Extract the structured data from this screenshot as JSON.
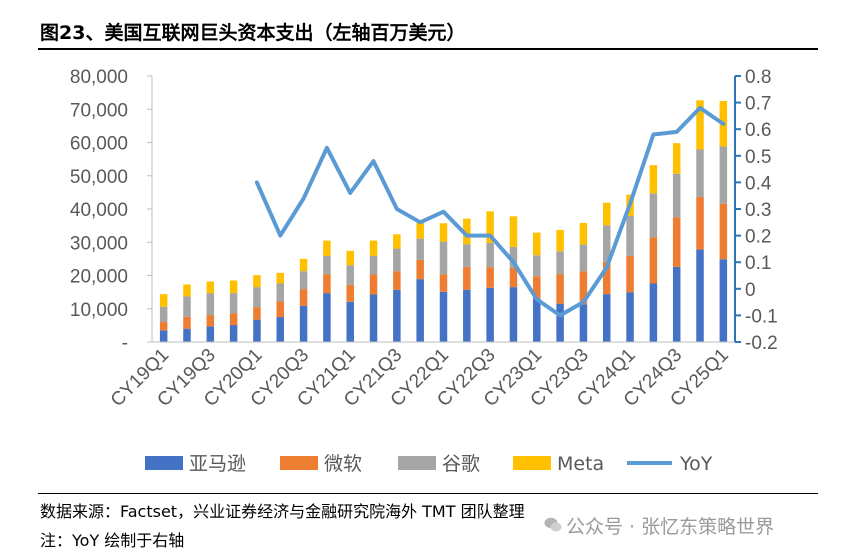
{
  "header": {
    "title": "图23、美国互联网巨头资本支出（左轴百万美元）"
  },
  "footer": {
    "source": "数据来源：Factset，兴业证券经济与金融研究院海外 TMT 团队整理",
    "note": "注：YoY 绘制于右轴",
    "watermark": "公众号 · 张忆东策略世界"
  },
  "chart_data": {
    "type": "bar",
    "stacked": true,
    "categories": [
      "CY19Q1",
      "CY19Q2",
      "CY19Q3",
      "CY19Q4",
      "CY20Q1",
      "CY20Q2",
      "CY20Q3",
      "CY20Q4",
      "CY21Q1",
      "CY21Q2",
      "CY21Q3",
      "CY21Q4",
      "CY22Q1",
      "CY22Q2",
      "CY22Q3",
      "CY22Q4",
      "CY23Q1",
      "CY23Q2",
      "CY23Q3",
      "CY23Q4",
      "CY24Q1",
      "CY24Q2",
      "CY24Q3",
      "CY24Q4",
      "CY25Q1"
    ],
    "x_tick_labels": [
      "CY19Q1",
      "",
      "CY19Q3",
      "",
      "CY20Q1",
      "",
      "CY20Q3",
      "",
      "CY21Q1",
      "",
      "CY21Q3",
      "",
      "CY22Q1",
      "",
      "CY22Q3",
      "",
      "CY23Q1",
      "",
      "CY23Q3",
      "",
      "CY24Q1",
      "",
      "CY24Q3",
      "",
      "CY25Q1"
    ],
    "series": [
      {
        "name": "亚马逊",
        "color": "#4472C4",
        "axis": "left",
        "values": [
          3500,
          4000,
          4700,
          5100,
          6700,
          7500,
          10900,
          14700,
          12100,
          14300,
          15700,
          18900,
          15100,
          15700,
          16300,
          16500,
          13200,
          11500,
          11300,
          14400,
          14900,
          17600,
          22600,
          27800,
          24900
        ]
      },
      {
        "name": "微软",
        "color": "#ED7D31",
        "axis": "left",
        "values": [
          2500,
          3600,
          3400,
          3500,
          3800,
          4700,
          5000,
          5700,
          5100,
          6000,
          5600,
          5800,
          5300,
          6900,
          6200,
          5800,
          6600,
          8900,
          9900,
          9700,
          11000,
          13900,
          14900,
          15800,
          16700
        ]
      },
      {
        "name": "谷歌",
        "color": "#A5A5A5",
        "axis": "left",
        "values": [
          4600,
          6100,
          6600,
          6100,
          6000,
          5400,
          5400,
          5500,
          5900,
          5600,
          6800,
          6400,
          9800,
          6800,
          7300,
          6300,
          6300,
          6900,
          8100,
          11000,
          12000,
          13200,
          13100,
          14300,
          17200
        ]
      },
      {
        "name": "Meta",
        "color": "#FFC000",
        "axis": "left",
        "values": [
          3800,
          3600,
          3500,
          3800,
          3600,
          3200,
          3700,
          4600,
          4300,
          4600,
          4300,
          5500,
          5500,
          7700,
          9500,
          9200,
          6800,
          6400,
          6500,
          6800,
          6400,
          8500,
          9200,
          14800,
          13700
        ]
      },
      {
        "name": "YoY",
        "color": "#5B9BD5",
        "type": "line",
        "axis": "right",
        "values": [
          null,
          null,
          null,
          null,
          0.4,
          0.2,
          0.34,
          0.53,
          0.36,
          0.48,
          0.3,
          0.25,
          0.29,
          0.2,
          0.2,
          0.1,
          -0.04,
          -0.1,
          -0.05,
          0.08,
          0.32,
          0.58,
          0.59,
          0.68,
          0.62
        ]
      }
    ],
    "y_left": {
      "min": 0,
      "max": 80000,
      "ticks": [
        "-",
        "10,000",
        "20,000",
        "30,000",
        "40,000",
        "50,000",
        "60,000",
        "70,000",
        "80,000"
      ]
    },
    "y_right": {
      "min": -0.2,
      "max": 0.8,
      "ticks": [
        "-0.2",
        "-0.1",
        "0",
        "0.1",
        "0.2",
        "0.3",
        "0.4",
        "0.5",
        "0.6",
        "0.7",
        "0.8"
      ]
    },
    "grid": false,
    "legend_position": "bottom"
  }
}
